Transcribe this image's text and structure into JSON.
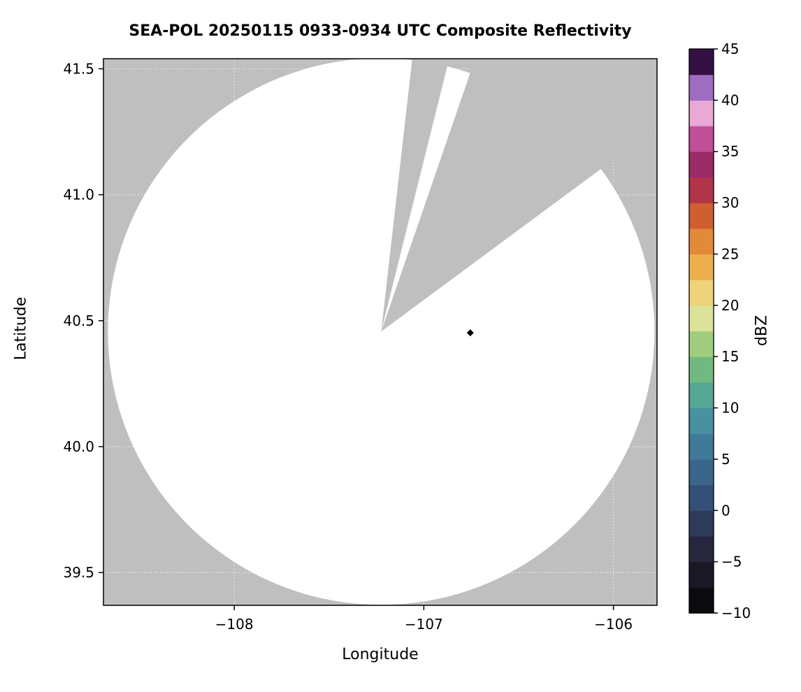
{
  "chart_data": {
    "type": "heatmap",
    "title": "SEA-POL 20250115 0933-0934 UTC Composite Reflectivity",
    "xlabel": "Longitude",
    "ylabel": "Latitude",
    "xlim": [
      -108.69,
      -105.77
    ],
    "ylim": [
      39.37,
      41.54
    ],
    "xticks": [
      -108,
      -107,
      -106
    ],
    "xtick_labels": [
      "−108",
      "−107",
      "−106"
    ],
    "yticks": [
      39.5,
      40.0,
      40.5,
      41.0,
      41.5
    ],
    "ytick_labels": [
      "39.5",
      "40.0",
      "40.5",
      "41.0",
      "41.5"
    ],
    "grid": true,
    "colors": {
      "background": "#ffffff",
      "no_data": "#bfbfbf",
      "coverage_fill": "#ffffff",
      "frame": "#000000",
      "grid": "#ffffff"
    },
    "radar_coverage": {
      "center_lon": -107.225,
      "center_lat": 40.457,
      "radius_deg_lat": 1.085,
      "missing_sectors_az_deg": [
        {
          "from": 6.5,
          "to": 14
        },
        {
          "from": 19,
          "to": 53.5
        }
      ]
    },
    "markers": [
      {
        "lon": -106.755,
        "lat": 40.452,
        "shape": "diamond",
        "color": "#000000"
      }
    ],
    "colorbar": {
      "label": "dBZ",
      "min": -10,
      "max": 45,
      "ticks": [
        45,
        40,
        35,
        30,
        25,
        20,
        15,
        10,
        5,
        0,
        -5,
        -10
      ],
      "tick_labels": [
        "45",
        "40",
        "35",
        "30",
        "25",
        "20",
        "15",
        "10",
        "5",
        "0",
        "−5",
        "−10"
      ],
      "segment_colors_bottom_to_top": [
        "#0c0b10",
        "#1b1826",
        "#26263e",
        "#2e3a5a",
        "#355077",
        "#3b658b",
        "#407a99",
        "#4990a1",
        "#56a794",
        "#70ba81",
        "#a0ce7e",
        "#dce29a",
        "#f0d279",
        "#edb04d",
        "#e38a39",
        "#d05e31",
        "#b23447",
        "#9b2a68",
        "#c14f97",
        "#e9a8d6",
        "#9e6cc0",
        "#341043"
      ]
    }
  }
}
